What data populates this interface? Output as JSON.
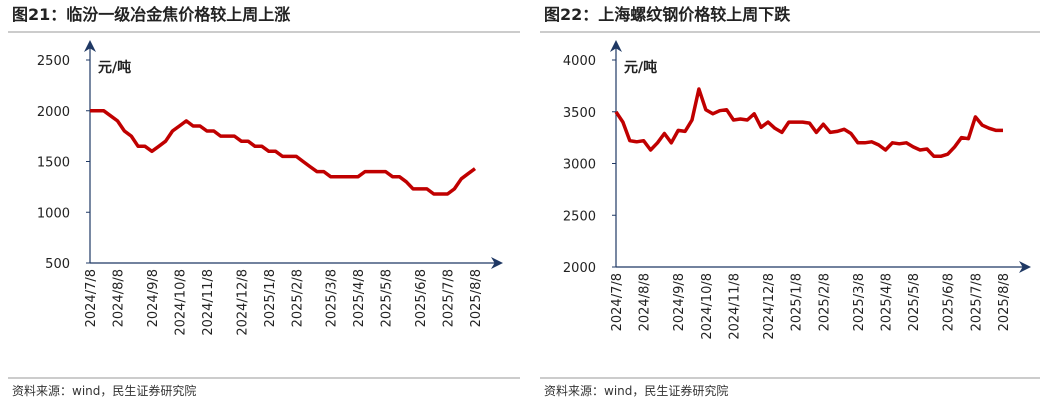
{
  "chart_data": [
    {
      "type": "line",
      "title": "图21：临汾一级冶金焦价格较上周上涨",
      "y_label": "元/吨",
      "source": "资料来源：wind，民生证券研究院",
      "categories": [
        "2024/7/8",
        null,
        null,
        null,
        "2024/8/8",
        null,
        null,
        null,
        null,
        "2024/9/8",
        null,
        null,
        null,
        "2024/10/8",
        null,
        null,
        null,
        "2024/11/8",
        null,
        null,
        null,
        null,
        "2024/12/8",
        null,
        null,
        null,
        "2025/1/8",
        null,
        null,
        null,
        "2025/2/8",
        null,
        null,
        null,
        null,
        "2025/3/8",
        null,
        null,
        null,
        "2025/4/8",
        null,
        null,
        null,
        "2025/5/8",
        null,
        null,
        null,
        null,
        "2025/6/8",
        null,
        null,
        null,
        "2025/7/8",
        null,
        null,
        null,
        "2025/8/8"
      ],
      "series": [
        {
          "name": "临汾一级冶金焦",
          "color": "#c00000",
          "values": [
            2000,
            2000,
            2000,
            1950,
            1900,
            1800,
            1750,
            1650,
            1650,
            1600,
            1650,
            1700,
            1800,
            1850,
            1900,
            1850,
            1850,
            1800,
            1800,
            1750,
            1750,
            1750,
            1700,
            1700,
            1650,
            1650,
            1600,
            1600,
            1550,
            1550,
            1550,
            1500,
            1450,
            1400,
            1400,
            1350,
            1350,
            1350,
            1350,
            1350,
            1400,
            1400,
            1400,
            1400,
            1350,
            1350,
            1300,
            1230,
            1230,
            1230,
            1180,
            1180,
            1180,
            1230,
            1330,
            1380,
            1430
          ]
        }
      ],
      "ylim": [
        500,
        2500
      ],
      "yticks": [
        500,
        1000,
        1500,
        2000,
        2500
      ]
    },
    {
      "type": "line",
      "title": "图22：上海螺纹钢价格较上周下跌",
      "y_label": "元/吨",
      "source": "资料来源：wind，民生证券研究院",
      "categories": [
        "2024/7/8",
        null,
        null,
        null,
        "2024/8/8",
        null,
        null,
        null,
        null,
        "2024/9/8",
        null,
        null,
        null,
        "2024/10/8",
        null,
        null,
        null,
        "2024/11/8",
        null,
        null,
        null,
        null,
        "2024/12/8",
        null,
        null,
        null,
        "2025/1/8",
        null,
        null,
        null,
        "2025/2/8",
        null,
        null,
        null,
        null,
        "2025/3/8",
        null,
        null,
        null,
        "2025/4/8",
        null,
        null,
        null,
        "2025/5/8",
        null,
        null,
        null,
        null,
        "2025/6/8",
        null,
        null,
        null,
        "2025/7/8",
        null,
        null,
        null,
        "2025/8/8"
      ],
      "series": [
        {
          "name": "上海螺纹钢",
          "color": "#c00000",
          "values": [
            3500,
            3400,
            3220,
            3210,
            3220,
            3130,
            3200,
            3290,
            3200,
            3320,
            3310,
            3420,
            3720,
            3520,
            3480,
            3510,
            3520,
            3420,
            3430,
            3420,
            3480,
            3350,
            3400,
            3340,
            3300,
            3400,
            3400,
            3400,
            3390,
            3300,
            3380,
            3300,
            3310,
            3330,
            3290,
            3200,
            3200,
            3210,
            3180,
            3130,
            3200,
            3190,
            3200,
            3160,
            3130,
            3140,
            3070,
            3070,
            3090,
            3160,
            3250,
            3240,
            3450,
            3370,
            3340,
            3320,
            3320
          ]
        }
      ],
      "ylim": [
        2000,
        4000
      ],
      "yticks": [
        2000,
        2500,
        3000,
        3500,
        4000
      ]
    }
  ]
}
